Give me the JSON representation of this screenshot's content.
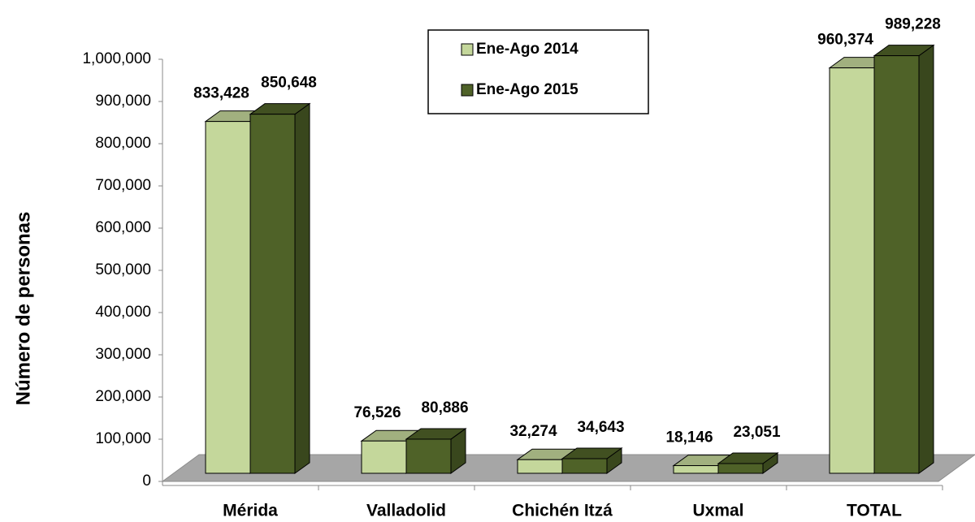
{
  "chart_data": {
    "type": "bar3d",
    "y_label": "Número de personas",
    "categories": [
      "Mérida",
      "Valladolid",
      "Chichén Itzá",
      "Uxmal",
      "TOTAL"
    ],
    "series": [
      {
        "name": "Ene-Ago 2014",
        "color": "#c4d79b",
        "values": [
          833428,
          76526,
          32274,
          18146,
          960374
        ],
        "value_labels": [
          "833,428",
          "76,526",
          "32,274",
          "18,146",
          "960,374"
        ]
      },
      {
        "name": "Ene-Ago 2015",
        "color": "#4f6228",
        "values": [
          850648,
          80886,
          34643,
          23051,
          989228
        ],
        "value_labels": [
          "850,648",
          "80,886",
          "34,643",
          "23,051",
          "989,228"
        ]
      }
    ],
    "ylim": [
      0,
      1000000
    ],
    "yticks": [
      0,
      {
        "value": 100000,
        "label": "100,000"
      },
      {
        "value": 200000,
        "label": "200,000"
      },
      {
        "value": 300000,
        "label": "300,000"
      },
      {
        "value": 400000,
        "label": "400,000"
      },
      {
        "value": 500000,
        "label": "500,000"
      },
      {
        "value": 600000,
        "label": "600,000"
      },
      {
        "value": 700000,
        "label": "700,000"
      },
      {
        "value": 800000,
        "label": "800,000"
      },
      {
        "value": 900000,
        "label": "900,000"
      },
      {
        "value": 1000000,
        "label": "1,000,000"
      }
    ],
    "legend": "top-center"
  }
}
